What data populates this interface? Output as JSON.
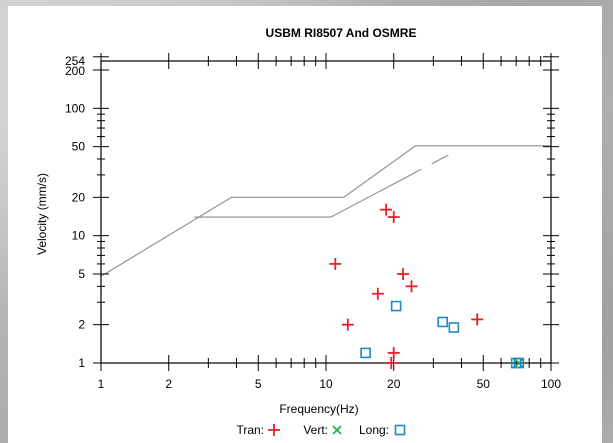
{
  "colors": {
    "tran": "#e8202a",
    "vert": "#1db34a",
    "long": "#1f8cc2",
    "limit": "#8c8c8c",
    "frame": "#000000"
  },
  "chart_data": {
    "type": "scatter",
    "title": "USBM RI8507 And OSMRE",
    "xlabel": "Frequency(Hz)",
    "ylabel": "Velocity (mm/s)",
    "xscale": "log",
    "yscale": "log",
    "xlim": [
      1,
      100
    ],
    "ylim": [
      1,
      254
    ],
    "x_ticks": [
      1,
      2,
      5,
      10,
      20,
      50,
      100
    ],
    "x_tick_labels": [
      "1",
      "2",
      "5",
      "10",
      "20",
      "50",
      "100"
    ],
    "y_ticks": [
      1,
      2,
      5,
      10,
      20,
      50,
      100,
      200,
      254
    ],
    "y_tick_labels": [
      "1",
      "2",
      "5",
      "10",
      "20",
      "50",
      "100",
      "200",
      "254"
    ],
    "legend_position": "bottom",
    "series": [
      {
        "name": "Tran",
        "marker": "plus",
        "points": [
          [
            11,
            6
          ],
          [
            12.5,
            2
          ],
          [
            17,
            3.5
          ],
          [
            18.5,
            16
          ],
          [
            19.5,
            1
          ],
          [
            20,
            14
          ],
          [
            20,
            1.2
          ],
          [
            22,
            5
          ],
          [
            24,
            4
          ],
          [
            47,
            2.2
          ]
        ]
      },
      {
        "name": "Vert",
        "marker": "cross",
        "points": [
          [
            72,
            1
          ]
        ]
      },
      {
        "name": "Long",
        "marker": "square",
        "points": [
          [
            15,
            1.2
          ],
          [
            20.5,
            2.8
          ],
          [
            33,
            2.1
          ],
          [
            37,
            1.9
          ],
          [
            70,
            1
          ],
          [
            72,
            1
          ]
        ]
      }
    ],
    "limit_lines": [
      {
        "points": [
          [
            1,
            4.8
          ],
          [
            3.8,
            20
          ],
          [
            12,
            20
          ],
          [
            25,
            50.8
          ],
          [
            100,
            50.8
          ]
        ]
      },
      {
        "points": [
          [
            2.6,
            14
          ],
          [
            10.5,
            14
          ],
          [
            35,
            43
          ]
        ],
        "gap": [
          [
            24.5,
            29
          ],
          [
            28.5,
            34.5
          ]
        ]
      }
    ]
  }
}
